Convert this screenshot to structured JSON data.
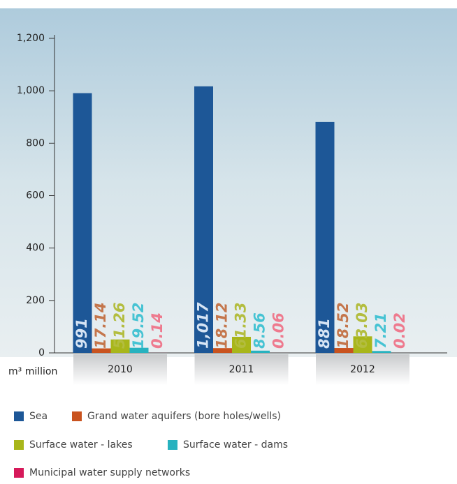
{
  "chart_data": {
    "type": "bar",
    "y_label": "m³ million",
    "categories": [
      "2010",
      "2011",
      "2012"
    ],
    "series": [
      {
        "name": "Sea",
        "color": "#1d5797",
        "label_color": "#d6e4f4",
        "values": [
          991,
          1017,
          881
        ],
        "value_labels": [
          "991",
          "1,017",
          "881"
        ]
      },
      {
        "name": "Grand water aquifers (bore holes/wells)",
        "color": "#c9531f",
        "label_color": "#c4764c",
        "values": [
          17.14,
          18.12,
          18.52
        ]
      },
      {
        "name": "Surface water - lakes",
        "color": "#a8b61a",
        "label_color": "#b3bd3f",
        "values": [
          51.26,
          61.33,
          63.03
        ]
      },
      {
        "name": "Surface water - dams",
        "color": "#27b2bf",
        "label_color": "#46c3d3",
        "values": [
          19.52,
          8.56,
          7.21
        ]
      },
      {
        "name": "Municipal water supply networks",
        "color": "#d6195a",
        "label_color": "#ee7a8e",
        "values": [
          0.14,
          0.06,
          0.02
        ]
      }
    ],
    "ylim": [
      0,
      1200
    ],
    "yticks": [
      0,
      200,
      400,
      600,
      800,
      {
        "value": 1000,
        "label": "1,000"
      },
      {
        "value": 1200,
        "label": "1,200"
      }
    ],
    "grid": false
  }
}
